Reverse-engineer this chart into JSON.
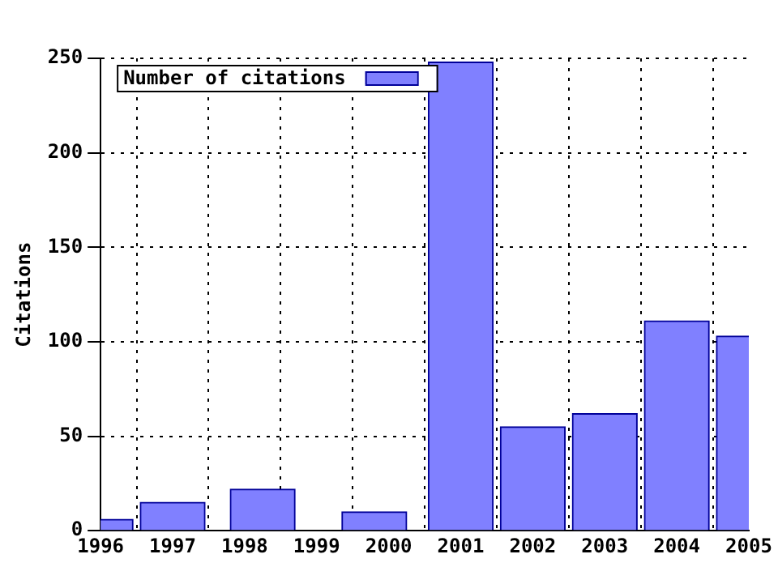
{
  "chart_data": {
    "type": "bar",
    "ylabel": "Citations",
    "x": [
      1996,
      1997,
      1998.25,
      1999.8,
      2001,
      2002,
      2003,
      2004,
      2005
    ],
    "series": [
      {
        "name": "Number of citations",
        "color": "#8080ff",
        "values": [
          6,
          15,
          22,
          10,
          248,
          55,
          62,
          111,
          103
        ]
      }
    ],
    "xlim": [
      1996,
      2005
    ],
    "xticks": [
      1996,
      1997,
      1998,
      1999,
      2000,
      2001,
      2002,
      2003,
      2004,
      2005
    ],
    "ylim": [
      0,
      250
    ],
    "yticks": [
      0,
      50,
      100,
      150,
      200,
      250
    ],
    "grid": true,
    "legend": "top left"
  }
}
